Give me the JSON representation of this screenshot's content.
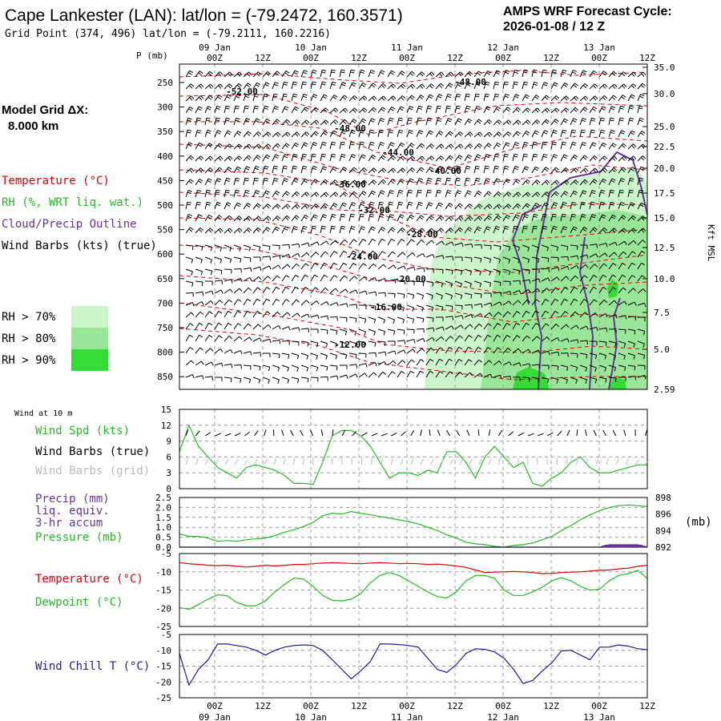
{
  "header": {
    "title": "Cape Lankester (LAN):  lat/lon = (-79.2472, 160.3571)",
    "grid_point": "Grid Point (374, 496) lat/lon = (-79.2111, 160.2216)",
    "cycle_line1": "AMPS WRF Forecast Cycle:",
    "cycle_line2": "2026-01-08 / 12  Z",
    "model_grid_label": "Model Grid ΔX:",
    "model_grid_value": "8.000 km"
  },
  "time_axis": {
    "hours": [
      "00Z",
      "12Z",
      "00Z",
      "12Z",
      "00Z",
      "12Z",
      "00Z",
      "12Z",
      "00Z",
      "12Z"
    ],
    "dates": [
      "09 Jan",
      "10 Jan",
      "11 Jan",
      "12 Jan",
      "13 Jan"
    ]
  },
  "colors": {
    "temperature": "#dd0000",
    "rh_green": "#22bb22",
    "cloud_outline": "#663399",
    "wind_chill": "#1a1aa0",
    "rh70": "#ccf5cc",
    "rh80": "#99e699",
    "rh90": "#33dd33"
  },
  "chart_data": [
    {
      "type": "contour",
      "name": "Upper-air time-height section",
      "ylabel": "P (mb)",
      "y2label": "Kft MSL",
      "pressure_levels": [
        250,
        300,
        350,
        400,
        450,
        500,
        550,
        600,
        650,
        700,
        750,
        800,
        850
      ],
      "height_labels": [
        "35.0",
        "30.0",
        "25.0",
        "22.5",
        "20.0",
        "17.5",
        "15.0",
        "12.5",
        "10.0",
        "7.5",
        "5.0",
        "2.59"
      ],
      "legend": {
        "temperature": "Temperature (°C)",
        "rh": "RH (%, WRT liq. wat.)",
        "cloud": "Cloud/Precip Outline",
        "barbs": "Wind Barbs (kts) (true)",
        "rh70": "RH > 70%",
        "rh80": "RH > 80%",
        "rh90": "RH > 90%"
      },
      "temperature_labels": [
        "-52.00",
        "-48.00",
        "-48.00",
        "-44.00",
        "-40.00",
        "-36.00",
        "-32.00",
        "-28.00",
        "-24.00",
        "-20.00",
        "-16.00",
        "-12.00"
      ]
    },
    {
      "type": "line",
      "name": "Wind at 10 m",
      "title": "Wind at 10 m",
      "series_label": "Wind Spd (kts)",
      "barbs_true_label": "Wind Barbs (true)",
      "barbs_grid_label": "Wind Barbs (grid)",
      "yticks": [
        "15",
        "12",
        "9",
        "6",
        "3",
        "0"
      ],
      "ylim": [
        0,
        15
      ],
      "values": [
        7,
        12,
        8,
        6,
        4,
        3,
        2,
        4,
        4.5,
        4,
        3.5,
        2.5,
        1,
        1,
        0.8,
        5,
        10,
        11,
        11,
        10,
        8,
        5,
        2,
        3,
        3,
        2.5,
        3.5,
        3,
        7,
        7,
        5,
        2,
        6,
        8,
        6,
        4,
        5,
        1,
        0.5,
        2,
        3,
        5,
        6,
        4,
        3,
        3,
        3.5,
        4,
        4.5,
        4.5
      ]
    },
    {
      "type": "line",
      "name": "Precip / Pressure",
      "precip_label": "Precip (mm)",
      "liq_label": "liq. equiv.",
      "accum_label": "3-hr accum",
      "pressure_label": "Pressure (mb)",
      "units_right": "(mb)",
      "yticks_left": [
        "2.5",
        "2.0",
        "1.5",
        "1.0",
        "0.5",
        "0.0"
      ],
      "yticks_right": [
        "898",
        "896",
        "894",
        "892"
      ],
      "pressure_ylim": [
        892,
        898
      ],
      "pressure": [
        893.6,
        893.3,
        893.3,
        893.1,
        892.7,
        892.8,
        892.7,
        892.9,
        893,
        893.1,
        893.4,
        893.8,
        894.1,
        894.5,
        895,
        895.8,
        896.1,
        896,
        896.3,
        896.1,
        895.9,
        895.7,
        895.5,
        895.3,
        895.1,
        894.8,
        894.4,
        894,
        893.5,
        893.1,
        892.6,
        892.4,
        892.3,
        892.1,
        892,
        892.2,
        892.3,
        892.5,
        892.9,
        893.3,
        894,
        894.6,
        895.3,
        895.9,
        896.4,
        896.8,
        897,
        897.1,
        897,
        896.9
      ],
      "precip": [
        0,
        0,
        0,
        0,
        0,
        0,
        0,
        0,
        0,
        0,
        0,
        0,
        0,
        0,
        0,
        0,
        0,
        0,
        0,
        0,
        0,
        0,
        0,
        0,
        0,
        0,
        0,
        0,
        0,
        0,
        0,
        0,
        0,
        0,
        0,
        0,
        0,
        0,
        0,
        0,
        0,
        0,
        0,
        0,
        0,
        0.12,
        0.12,
        0.12,
        0.12,
        0
      ]
    },
    {
      "type": "line",
      "name": "Temperature / Dewpoint",
      "temp_label": "Temperature (°C)",
      "dew_label": "Dewpoint (°C)",
      "yticks": [
        "-5",
        "-10",
        "-15",
        "-20",
        "-25"
      ],
      "ylim": [
        -25,
        -5
      ],
      "temperature": [
        -7.5,
        -7.8,
        -8,
        -8.2,
        -8.3,
        -8.2,
        -8.5,
        -8.7,
        -8.5,
        -8.2,
        -8.4,
        -8.2,
        -8,
        -8,
        -7.8,
        -7.6,
        -7.5,
        -7.6,
        -7.7,
        -7.8,
        -7.6,
        -7.5,
        -7.6,
        -7.8,
        -7.7,
        -7.8,
        -8,
        -7.9,
        -8.1,
        -8.4,
        -8.8,
        -9.5,
        -10.2,
        -10.1,
        -10,
        -9.9,
        -10,
        -10.2,
        -10.5,
        -10.4,
        -10.2,
        -10.1,
        -10,
        -9.8,
        -9.6,
        -9.5,
        -9.2,
        -9,
        -8.5,
        -8.2
      ],
      "dewpoint": [
        -19.8,
        -20.3,
        -19,
        -17.5,
        -16.3,
        -16.6,
        -18.4,
        -19.3,
        -19.3,
        -18,
        -15.5,
        -13.5,
        -11.7,
        -12,
        -14,
        -16.5,
        -17.8,
        -18,
        -17.5,
        -16,
        -13,
        -11,
        -10.2,
        -11,
        -12.5,
        -14,
        -15.5,
        -16.8,
        -17.2,
        -15.5,
        -12.5,
        -11,
        -11,
        -11.8,
        -15,
        -16.5,
        -16.5,
        -15.5,
        -14.2,
        -12.5,
        -11.6,
        -12.5,
        -14,
        -15,
        -14.8,
        -12.5,
        -11,
        -10.5,
        -9.6,
        -11.8
      ]
    },
    {
      "type": "line",
      "name": "Wind Chill",
      "label": "Wind Chill T (°C)",
      "yticks": [
        "-5",
        "-10",
        "-15",
        "-20",
        "-25"
      ],
      "ylim": [
        -25,
        -5
      ],
      "values": [
        -11,
        -21,
        -16,
        -13,
        -8,
        -8,
        -8.5,
        -9,
        -10,
        -11.5,
        -10,
        -9,
        -8.5,
        -8.3,
        -8.5,
        -10,
        -13,
        -16,
        -19,
        -16.5,
        -13.5,
        -8,
        -8,
        -8.2,
        -8.5,
        -9,
        -12.5,
        -16,
        -17,
        -14.5,
        -11,
        -9.5,
        -9.7,
        -10.5,
        -12.5,
        -16,
        -20.5,
        -19.5,
        -16.5,
        -14,
        -10.2,
        -10,
        -11.5,
        -13,
        -9,
        -9,
        -8.3,
        -8.7,
        -9.5,
        -9.8
      ]
    }
  ]
}
